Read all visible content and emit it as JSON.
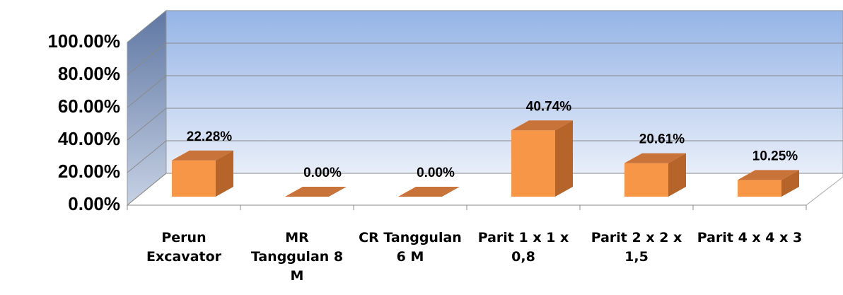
{
  "chart_data": {
    "type": "bar3d",
    "categories": [
      "Perun Excavator",
      "MR Tanggulan 8 M",
      "CR Tanggulan 6 M",
      "Parit 1 x 1 x 0,8",
      "Parit 2 x 2 x 1,5",
      "Parit 4 x 4 x 3"
    ],
    "values": [
      22.28,
      0,
      0,
      40.74,
      20.61,
      10.25
    ],
    "value_labels": [
      "22.28%",
      "0.00%",
      "0.00%",
      "40.74%",
      "20.61%",
      "10.25%"
    ],
    "color": "#f79646",
    "ylim": [
      0,
      100
    ],
    "yticks": [
      {
        "value": 0,
        "label": "0.00%"
      },
      {
        "value": 20,
        "label": "20.00%"
      },
      {
        "value": 40,
        "label": "40.00%"
      },
      {
        "value": 60,
        "label": "60.00%"
      },
      {
        "value": 80,
        "label": "80.00%"
      },
      {
        "value": 100,
        "label": "100.00%"
      }
    ],
    "grid": true
  }
}
